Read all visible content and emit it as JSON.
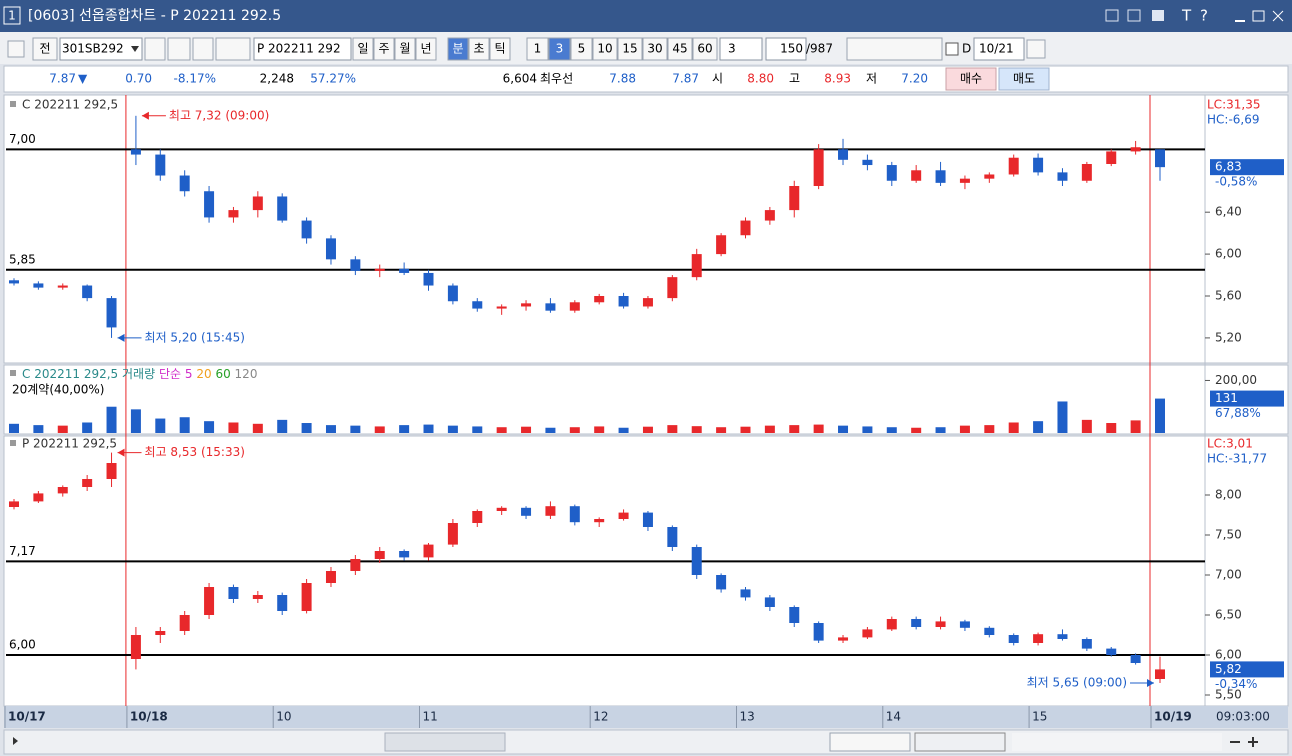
{
  "window": {
    "number": "1",
    "title": "[0603] 선옵종합차트 - P 202211 292.5",
    "buttons": [
      "T",
      "?"
    ]
  },
  "toolbar": {
    "full": "전",
    "code": "301SB292",
    "name": "P 202211 292",
    "periods": [
      "일",
      "주",
      "월",
      "년"
    ],
    "units": [
      "분",
      "초",
      "틱"
    ],
    "active_unit": "분",
    "minutes": [
      "1",
      "3",
      "5",
      "10",
      "15",
      "30",
      "45",
      "60"
    ],
    "active_minute": "3",
    "interval": "3",
    "count": "150",
    "total": "/987",
    "day_flag": "D",
    "date": "10/21"
  },
  "info": {
    "price": "7.87",
    "direction": "▼",
    "change": "0.70",
    "rate": "-8.17%",
    "volume": "2,248",
    "ratio": "57.27%",
    "open_interest": "6,604",
    "best_label": "최우선",
    "best_ask": "7.88",
    "best_bid": "7.87",
    "open_label": "시",
    "open": "8.80",
    "high_label": "고",
    "high": "8.93",
    "low_label": "저",
    "low": "7.20",
    "buy": "매수",
    "sell": "매도"
  },
  "chart_data": [
    {
      "type": "candlestick",
      "legend": "C 202211 292,5",
      "up_color": "#e8282b",
      "down_color": "#1f5fc8",
      "ylim": [
        4.97,
        7.49
      ],
      "yticks": [
        {
          "value": 6.4,
          "label": "6,40"
        },
        {
          "value": 6.0,
          "label": "6,00"
        },
        {
          "value": 5.6,
          "label": "5,60"
        },
        {
          "value": 5.2,
          "label": "5,20"
        }
      ],
      "hlines": [
        {
          "value": 7.0,
          "label": "7,00"
        },
        {
          "value": 5.85,
          "label": "5,85"
        }
      ],
      "lc": "LC:31,35",
      "hc": "HC:-6,69",
      "last": {
        "value": 6.83,
        "label": "6,83",
        "change": "-0,58%"
      },
      "annotations": [
        {
          "text": "최고 7,32 (09:00)",
          "value": 7.32,
          "at": "high"
        },
        {
          "text": "최저 5,20 (15:45)",
          "value": 5.2,
          "at": "low"
        }
      ],
      "open": [
        5.75,
        5.72,
        5.68,
        5.7,
        5.58,
        7.0,
        6.95,
        6.75,
        6.6,
        6.35,
        6.42,
        6.55,
        6.32,
        6.15,
        5.95,
        5.84,
        5.86,
        5.82,
        5.7,
        5.55,
        5.48,
        5.5,
        5.53,
        5.46,
        5.54,
        5.6,
        5.5,
        5.58,
        5.78,
        6.0,
        6.18,
        6.32,
        6.42,
        6.65,
        7.0,
        6.9,
        6.85,
        6.7,
        6.8,
        6.68,
        6.72,
        6.76,
        6.92,
        6.78,
        6.7,
        6.86,
        6.98,
        7.0
      ],
      "high": [
        5.77,
        5.74,
        5.72,
        5.71,
        5.6,
        7.32,
        7.0,
        6.8,
        6.65,
        6.45,
        6.6,
        6.58,
        6.35,
        6.18,
        5.98,
        5.9,
        5.92,
        5.85,
        5.72,
        5.58,
        5.52,
        5.56,
        5.58,
        5.56,
        5.62,
        5.63,
        5.6,
        5.8,
        6.05,
        6.2,
        6.35,
        6.45,
        6.7,
        7.05,
        7.1,
        6.95,
        6.88,
        6.85,
        6.88,
        6.75,
        6.78,
        6.95,
        6.96,
        6.82,
        6.88,
        7.0,
        7.08,
        7.0
      ],
      "low": [
        5.7,
        5.66,
        5.66,
        5.55,
        5.2,
        6.85,
        6.7,
        6.55,
        6.3,
        6.3,
        6.35,
        6.3,
        6.1,
        5.9,
        5.8,
        5.78,
        5.8,
        5.65,
        5.52,
        5.45,
        5.42,
        5.46,
        5.44,
        5.44,
        5.52,
        5.48,
        5.48,
        5.55,
        5.75,
        5.98,
        6.15,
        6.28,
        6.35,
        6.62,
        6.85,
        6.8,
        6.65,
        6.68,
        6.65,
        6.62,
        6.68,
        6.74,
        6.75,
        6.65,
        6.68,
        6.84,
        6.95,
        6.7
      ],
      "close": [
        5.72,
        5.68,
        5.7,
        5.58,
        5.3,
        6.95,
        6.75,
        6.6,
        6.35,
        6.42,
        6.55,
        6.32,
        6.15,
        5.95,
        5.84,
        5.86,
        5.82,
        5.7,
        5.55,
        5.48,
        5.5,
        5.53,
        5.46,
        5.54,
        5.6,
        5.5,
        5.58,
        5.78,
        6.0,
        6.18,
        6.32,
        6.42,
        6.65,
        7.0,
        6.9,
        6.85,
        6.7,
        6.8,
        6.68,
        6.72,
        6.76,
        6.92,
        6.78,
        6.7,
        6.86,
        6.98,
        7.02,
        6.83
      ]
    },
    {
      "type": "bar",
      "legend": "C 202211 292,5 거래량",
      "ma_label": "단순",
      "ma_periods": [
        "5",
        "20",
        "60",
        "120"
      ],
      "ma_colors": [
        "#d02cc8",
        "#f0a020",
        "#28a028",
        "#888888"
      ],
      "note": "20계약(40,00%)",
      "ylim": [
        0,
        255
      ],
      "yticks": [
        {
          "value": 200,
          "label": "200,00"
        }
      ],
      "last": {
        "value": 131,
        "label": "131",
        "change": "67,88%"
      },
      "values": [
        35,
        30,
        28,
        40,
        100,
        90,
        55,
        60,
        45,
        40,
        35,
        50,
        38,
        30,
        28,
        25,
        30,
        32,
        28,
        25,
        22,
        24,
        20,
        22,
        25,
        20,
        24,
        30,
        26,
        22,
        24,
        28,
        30,
        32,
        28,
        25,
        22,
        20,
        22,
        28,
        30,
        40,
        45,
        120,
        50,
        38,
        48,
        131
      ]
    },
    {
      "type": "candlestick",
      "legend": "P 202211 292,5",
      "up_color": "#e8282b",
      "down_color": "#1f5fc8",
      "ylim": [
        5.375,
        8.725
      ],
      "yticks": [
        {
          "value": 8.0,
          "label": "8,00"
        },
        {
          "value": 7.5,
          "label": "7,50"
        },
        {
          "value": 7.0,
          "label": "7,00"
        },
        {
          "value": 6.5,
          "label": "6,50"
        },
        {
          "value": 6.0,
          "label": "6,00"
        },
        {
          "value": 5.5,
          "label": "5,50"
        }
      ],
      "hlines": [
        {
          "value": 7.17,
          "label": "7,17"
        },
        {
          "value": 6.0,
          "label": "6,00"
        }
      ],
      "lc": "LC:3,01",
      "hc": "HC:-31,77",
      "last": {
        "value": 5.82,
        "label": "5,82",
        "change": "-0,34%"
      },
      "annotations": [
        {
          "text": "최고 8,53 (15:33)",
          "value": 8.53,
          "at": "high"
        },
        {
          "text": "최저 5,65 (09:00)",
          "value": 5.65,
          "at": "low"
        }
      ],
      "categories": [
        "10/17",
        null,
        null,
        null,
        null,
        "10/18",
        null,
        null,
        null,
        null,
        null,
        "10",
        null,
        null,
        null,
        null,
        null,
        "11",
        null,
        null,
        null,
        null,
        null,
        null,
        "12",
        null,
        null,
        null,
        null,
        null,
        "13",
        null,
        null,
        null,
        null,
        null,
        "14",
        null,
        null,
        null,
        null,
        null,
        "15",
        null,
        null,
        null,
        null,
        "10/19"
      ],
      "time": "09:03:00",
      "open": [
        7.85,
        7.92,
        8.02,
        8.1,
        8.2,
        5.95,
        6.25,
        6.3,
        6.5,
        6.85,
        6.7,
        6.75,
        6.55,
        6.9,
        7.05,
        7.2,
        7.3,
        7.22,
        7.38,
        7.65,
        7.8,
        7.84,
        7.74,
        7.86,
        7.66,
        7.7,
        7.78,
        7.6,
        7.35,
        7.0,
        6.82,
        6.72,
        6.6,
        6.4,
        6.18,
        6.22,
        6.32,
        6.45,
        6.35,
        6.42,
        6.34,
        6.25,
        6.15,
        6.26,
        6.2,
        6.08,
        6.0,
        5.7
      ],
      "high": [
        7.95,
        8.05,
        8.12,
        8.25,
        8.53,
        6.35,
        6.35,
        6.55,
        6.9,
        6.88,
        6.8,
        6.78,
        6.95,
        7.1,
        7.25,
        7.35,
        7.32,
        7.4,
        7.7,
        7.82,
        7.86,
        7.86,
        7.92,
        7.88,
        7.72,
        7.82,
        7.8,
        7.62,
        7.38,
        7.02,
        6.85,
        6.75,
        6.62,
        6.42,
        6.25,
        6.35,
        6.48,
        6.48,
        6.48,
        6.44,
        6.36,
        6.27,
        6.28,
        6.32,
        6.22,
        6.1,
        6.02,
        5.98
      ],
      "low": [
        7.82,
        7.9,
        7.98,
        8.05,
        8.1,
        5.82,
        6.15,
        6.25,
        6.45,
        6.65,
        6.65,
        6.5,
        6.52,
        6.85,
        7.0,
        7.15,
        7.18,
        7.18,
        7.35,
        7.6,
        7.75,
        7.7,
        7.7,
        7.62,
        7.6,
        7.68,
        7.55,
        7.3,
        6.95,
        6.78,
        6.68,
        6.55,
        6.35,
        6.15,
        6.15,
        6.2,
        6.3,
        6.32,
        6.32,
        6.3,
        6.22,
        6.12,
        6.12,
        6.18,
        6.05,
        5.98,
        5.88,
        5.65
      ],
      "close": [
        7.92,
        8.02,
        8.1,
        8.2,
        8.4,
        6.25,
        6.3,
        6.5,
        6.85,
        6.7,
        6.75,
        6.55,
        6.9,
        7.05,
        7.2,
        7.3,
        7.22,
        7.38,
        7.65,
        7.8,
        7.84,
        7.74,
        7.86,
        7.66,
        7.7,
        7.78,
        7.6,
        7.35,
        7.0,
        6.82,
        6.72,
        6.6,
        6.4,
        6.18,
        6.22,
        6.32,
        6.45,
        6.35,
        6.42,
        6.34,
        6.25,
        6.15,
        6.26,
        6.2,
        6.08,
        6.0,
        5.9,
        5.82
      ]
    }
  ]
}
